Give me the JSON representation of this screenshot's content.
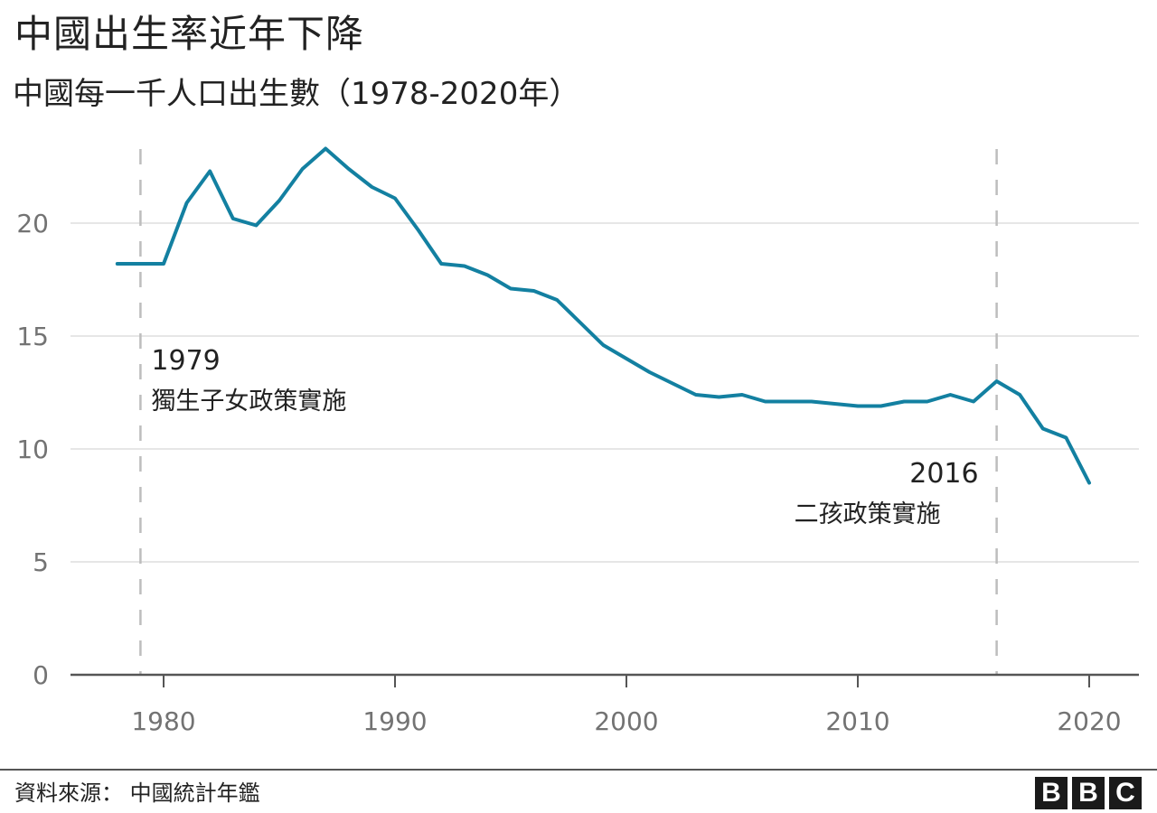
{
  "header": {
    "title": "中國出生率近年下降",
    "subtitle": "中國每一千人口出生數（1978-2020年）"
  },
  "footer": {
    "source": "資料來源：  中國統計年鑑",
    "logo_letters": [
      "B",
      "B",
      "C"
    ]
  },
  "colors": {
    "line": "#1380A1",
    "gridline": "#e6e6e6",
    "axis": "#555555",
    "dashed_marker": "#bdbdbd",
    "tick_label": "#737373",
    "text": "#222222"
  },
  "annotations": [
    {
      "year": "1979",
      "text": "獨生子女政策實施",
      "x": 1979,
      "align": "left"
    },
    {
      "year": "2016",
      "text": "二孩政策實施",
      "x": 2016,
      "align": "right"
    }
  ],
  "chart_data": {
    "type": "line",
    "title": "中國出生率近年下降",
    "subtitle": "中國每一千人口出生數（1978-2020年）",
    "xlabel": "",
    "ylabel": "",
    "x": [
      1978,
      1979,
      1980,
      1981,
      1982,
      1983,
      1984,
      1985,
      1986,
      1987,
      1988,
      1989,
      1990,
      1991,
      1992,
      1993,
      1994,
      1995,
      1996,
      1997,
      1998,
      1999,
      2000,
      2001,
      2002,
      2003,
      2004,
      2005,
      2006,
      2007,
      2008,
      2009,
      2010,
      2011,
      2012,
      2013,
      2014,
      2015,
      2016,
      2017,
      2018,
      2019,
      2020
    ],
    "series": [
      {
        "name": "每一千人口出生數",
        "values": [
          18.2,
          18.2,
          18.2,
          20.9,
          22.3,
          20.2,
          19.9,
          21.0,
          22.4,
          23.3,
          22.4,
          21.6,
          21.1,
          19.7,
          18.2,
          18.1,
          17.7,
          17.1,
          17.0,
          16.6,
          15.6,
          14.6,
          14.0,
          13.4,
          12.9,
          12.4,
          12.3,
          12.4,
          12.1,
          12.1,
          12.1,
          12.0,
          11.9,
          11.9,
          12.1,
          12.1,
          12.4,
          12.1,
          13.0,
          12.4,
          10.9,
          10.5,
          8.5
        ]
      }
    ],
    "xticks": [
      1980,
      1990,
      2000,
      2010,
      2020
    ],
    "xtick_labels": [
      "1980",
      "1990",
      "2000",
      "2010",
      "2020"
    ],
    "yticks": [
      0,
      5,
      10,
      15,
      20
    ],
    "ytick_labels": [
      "0",
      "5",
      "10",
      "15",
      "20"
    ],
    "xlim": [
      1976,
      2022
    ],
    "ylim": [
      0,
      25
    ],
    "grid": true,
    "legend": "none",
    "vertical_markers": [
      {
        "x": 1979,
        "label": "1979",
        "note": "獨生子女政策實施"
      },
      {
        "x": 2016,
        "label": "2016",
        "note": "二孩政策實施"
      }
    ],
    "source": "資料來源：  中國統計年鑑"
  }
}
